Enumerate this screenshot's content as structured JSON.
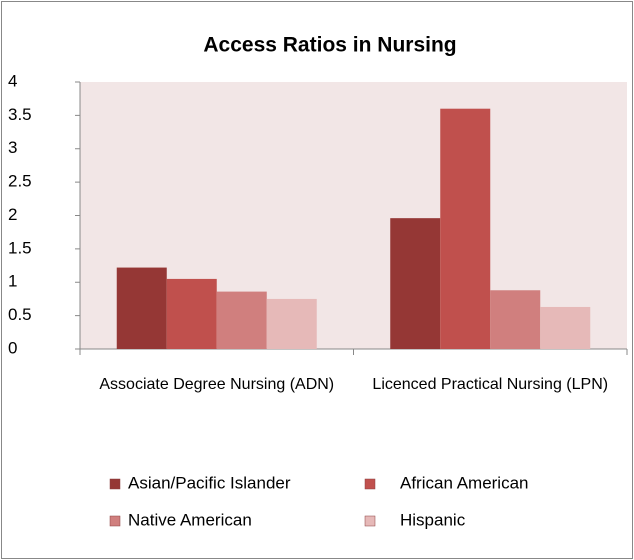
{
  "chart_data": {
    "type": "bar",
    "title": "Access Ratios in Nursing",
    "categories": [
      "Associate Degree Nursing (ADN)",
      "Licenced Practical Nursing (LPN)"
    ],
    "series": [
      {
        "name": "Asian/Pacific Islander",
        "color": "#953735",
        "values": [
          1.22,
          1.96
        ]
      },
      {
        "name": "African American",
        "color": "#c0504d",
        "values": [
          1.05,
          3.6
        ]
      },
      {
        "name": "Native American",
        "color": "#d07f7e",
        "values": [
          0.86,
          0.88
        ]
      },
      {
        "name": "Hispanic",
        "color": "#e6b9b8",
        "values": [
          0.75,
          0.63
        ]
      }
    ],
    "ylim": [
      0,
      4
    ],
    "yticks": [
      0,
      0.5,
      1,
      1.5,
      2,
      2.5,
      3,
      3.5,
      4
    ],
    "plot_background": "#f2e6e6",
    "legend": "bottom"
  }
}
